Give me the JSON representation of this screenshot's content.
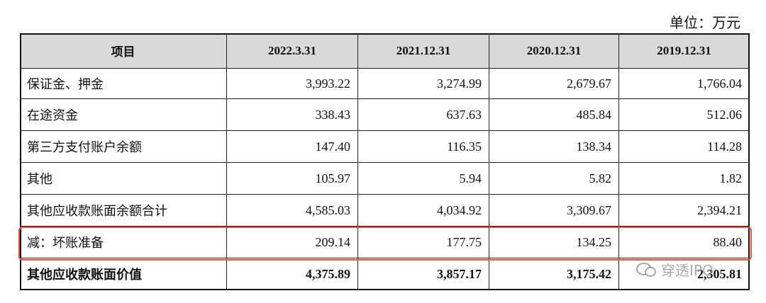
{
  "unit": "单位：万元",
  "table": {
    "header": [
      "项目",
      "2022.3.31",
      "2021.12.31",
      "2020.12.31",
      "2019.12.31"
    ],
    "rows": [
      [
        "保证金、押金",
        "3,993.22",
        "3,274.99",
        "2,679.67",
        "1,766.04"
      ],
      [
        "在途资金",
        "338.43",
        "637.63",
        "485.84",
        "512.06"
      ],
      [
        "第三方支付账户余额",
        "147.40",
        "116.35",
        "138.34",
        "114.28"
      ],
      [
        "其他",
        "105.97",
        "5.94",
        "5.82",
        "1.82"
      ],
      [
        "其他应收款账面余额合计",
        "4,585.03",
        "4,034.92",
        "3,309.67",
        "2,394.21"
      ],
      [
        "减：坏账准备",
        "209.14",
        "177.75",
        "134.25",
        "88.40"
      ],
      [
        "其他应收款账面价值",
        "4,375.89",
        "3,857.17",
        "3,175.42",
        "2,305.81"
      ]
    ]
  },
  "watermark": "穿透IPO"
}
